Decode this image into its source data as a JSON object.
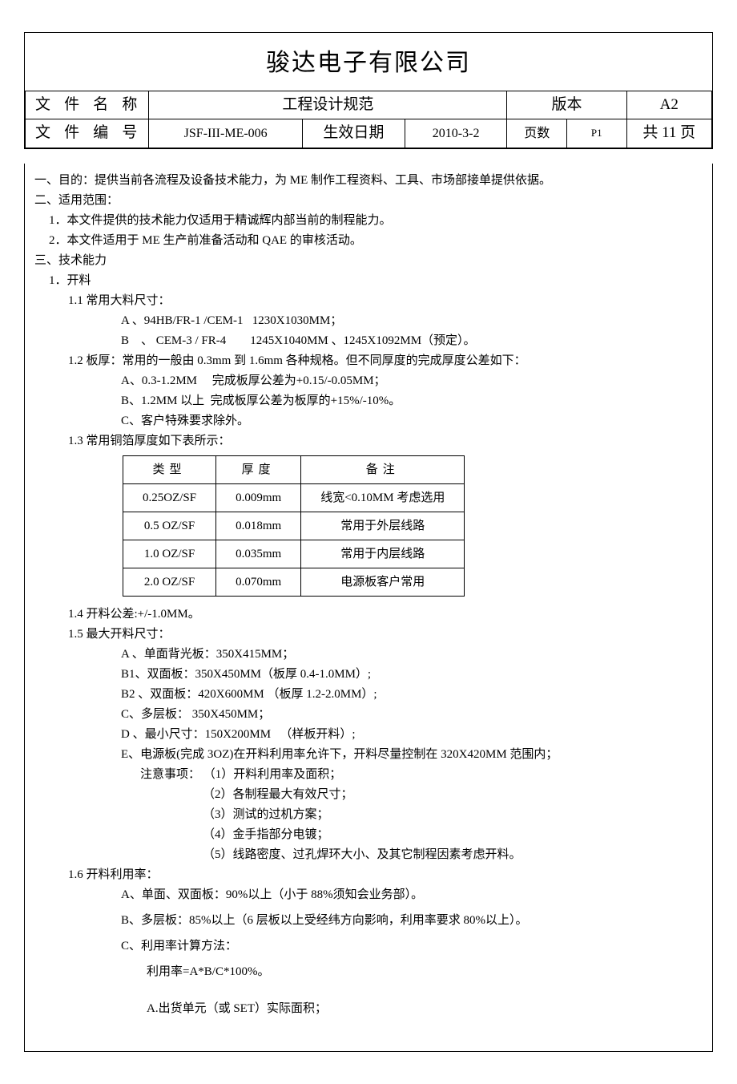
{
  "header": {
    "company": "骏达电子有限公司",
    "doc_name_label": "文件名称",
    "doc_name": "工程设计规范",
    "version_label": "版本",
    "version": "A2",
    "doc_no_label": "文件编号",
    "doc_no": "JSF-III-ME-006",
    "eff_date_label": "生效日期",
    "eff_date": "2010-3-2",
    "page_label": "页数",
    "page_no": "P1",
    "page_total": "共 11 页"
  },
  "body": {
    "s1": "一、目的：提供当前各流程及设备技术能力，为 ME 制作工程资料、工具、市场部接单提供依据。",
    "s2": "二、适用范围：",
    "s2_1": "1．本文件提供的技术能力仅适用于精诚辉内部当前的制程能力。",
    "s2_2": "2．本文件适用于 ME 生产前准备活动和 QAE 的审核活动。",
    "s3": "三、技术能力",
    "s3_1": "1．开料",
    "s3_1_1": "1.1  常用大料尺寸：",
    "s3_1_1a": "A  、94HB/FR-1 /CEM-1   1230X1030MM；",
    "s3_1_1b": "B    、 CEM-3 / FR-4        1245X1040MM  、1245X1092MM（预定）。",
    "s3_1_2": "1.2  板厚：常用的一般由 0.3mm 到 1.6mm 各种规格。但不同厚度的完成厚度公差如下：",
    "s3_1_2a": "A、0.3-1.2MM     完成板厚公差为+0.15/-0.05MM；",
    "s3_1_2b": "B、1.2MM 以上  完成板厚公差为板厚的+15%/-10%。",
    "s3_1_2c": "C、客户特殊要求除外。",
    "s3_1_3": "1.3 常用铜箔厚度如下表所示：",
    "s3_1_4": "1.4  开料公差:+/-1.0MM。",
    "s3_1_5": "1.5  最大开料尺寸：",
    "s3_1_5a": "A   、单面背光板：350X415MM；",
    "s3_1_5b1": "B1、双面板：350X450MM（板厚 0.4-1.0MM）;",
    "s3_1_5b2": "B2 、双面板：420X600MM  （板厚 1.2-2.0MM）;",
    "s3_1_5c": "C、多层板： 350X450MM；",
    "s3_1_5d": "D 、最小尺寸：150X200MM   （样板开料）;",
    "s3_1_5e": "E、电源板(完成 3OZ)在开料利用率允许下，开料尽量控制在 320X420MM 范围内；",
    "s3_1_5note": "注意事项： （1）开料利用率及面积；",
    "s3_1_5n2": "（2）各制程最大有效尺寸；",
    "s3_1_5n3": "（3）测试的过机方案；",
    "s3_1_5n4": "（4）金手指部分电镀；",
    "s3_1_5n5": "（5）线路密度、过孔焊环大小、及其它制程因素考虑开料。",
    "s3_1_6": "1.6 开料利用率：",
    "s3_1_6a": "A、单面、双面板：90%以上（小于 88%须知会业务部）。",
    "s3_1_6b": "B、多层板：85%以上（6 层板以上受经纬方向影响，利用率要求 80%以上）。",
    "s3_1_6c": "C、利用率计算方法：",
    "s3_1_6c_formula": "利用率=A*B/C*100%。",
    "s3_1_6c_a": "A.出货单元（或 SET）实际面积；"
  },
  "copper_table": {
    "columns": [
      "类型",
      "厚度",
      "备注"
    ],
    "rows": [
      [
        "0.25OZ/SF",
        "0.009mm",
        "线宽<0.10MM 考虑选用"
      ],
      [
        "0.5 OZ/SF",
        "0.018mm",
        "常用于外层线路"
      ],
      [
        "1.0 OZ/SF",
        "0.035mm",
        "常用于内层线路"
      ],
      [
        "2.0 OZ/SF",
        "0.070mm",
        "电源板客户常用"
      ]
    ]
  }
}
